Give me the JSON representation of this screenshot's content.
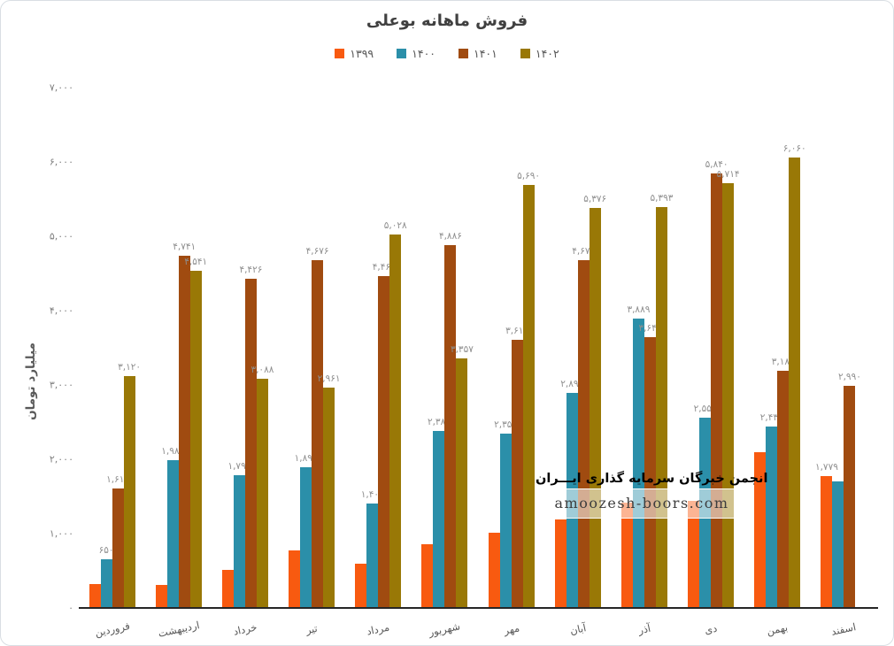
{
  "title": "فروش ماهانه بوعلی",
  "y_axis": {
    "title": "میلیارد تومان",
    "ticks": [
      "۷,۰۰۰",
      "۶,۰۰۰",
      "۵,۰۰۰",
      "۴,۰۰۰",
      "۳,۰۰۰",
      "۲,۰۰۰",
      "۱,۰۰۰",
      "۰"
    ]
  },
  "watermark": {
    "line1": "انجمن خبرگان سرمایه گذاری ایـــران",
    "line2": "amoozesh-boors.com"
  },
  "chart_data": {
    "type": "bar",
    "title": "فروش ماهانه بوعلی",
    "ylabel": "میلیارد تومان",
    "xlabel": "",
    "ylim": [
      0,
      7000
    ],
    "y_tick_step": 1000,
    "grid": false,
    "legend_position": "top-center",
    "categories": [
      "فروردین",
      "اردیبهشت",
      "خرداد",
      "تیر",
      "مرداد",
      "شهریور",
      "مهر",
      "آبان",
      "آذر",
      "دی",
      "بهمن",
      "اسفند"
    ],
    "series": [
      {
        "name": "۱۳۹۹",
        "color": "#F85A10",
        "values": [
          320,
          310,
          510,
          775,
          595,
          860,
          1010,
          1190,
          1420,
          1440,
          2100,
          1779
        ],
        "labels": [
          null,
          null,
          null,
          null,
          null,
          null,
          null,
          null,
          null,
          null,
          null,
          "۱,۷۷۹"
        ]
      },
      {
        "name": "۱۴۰۰",
        "color": "#2B8FA9",
        "values": [
          650,
          1983,
          1790,
          1897,
          1406,
          2380,
          2351,
          2897,
          3889,
          2558,
          2438,
          1700
        ],
        "labels": [
          "۶۵۰",
          "۱,۹۸۳",
          "۱,۷۹۰",
          "۱,۸۹۷",
          "۱,۴۰۶",
          "۲,۳۸۰",
          "۲,۳۵۱",
          "۲,۸۹۷",
          "۳,۸۸۹",
          "۲,۵۵۸",
          "۲,۴۳۸",
          null
        ]
      },
      {
        "name": "۱۴۰۱",
        "color": "#A04B10",
        "values": [
          1611,
          4741,
          4426,
          4676,
          4469,
          4886,
          3612,
          4677,
          3640,
          5840,
          3185,
          2990
        ],
        "labels": [
          "۱,۶۱۱",
          "۴,۷۴۱",
          "۴,۴۲۶",
          "۴,۶۷۶",
          "۴,۴۶۹",
          "۴,۸۸۶",
          "۳,۶۱۲",
          "۴,۶۷۷",
          "۳,۶۴۰",
          "۵,۸۴۰",
          "۳,۱۸۵",
          "۲,۹۹۰"
        ]
      },
      {
        "name": "۱۴۰۲",
        "color": "#997806",
        "values": [
          3120,
          4541,
          3088,
          2961,
          5028,
          3357,
          5690,
          5376,
          5393,
          5714,
          6060,
          null
        ],
        "labels": [
          "۳,۱۲۰",
          "۴,۵۴۱",
          "۳,۰۸۸",
          "۲,۹۶۱",
          "۵,۰۲۸",
          "۳,۳۵۷",
          "۵,۶۹۰",
          "۵,۳۷۶",
          "۵,۳۹۳",
          "۵,۷۱۴",
          "۶,۰۶۰",
          null
        ]
      }
    ]
  }
}
